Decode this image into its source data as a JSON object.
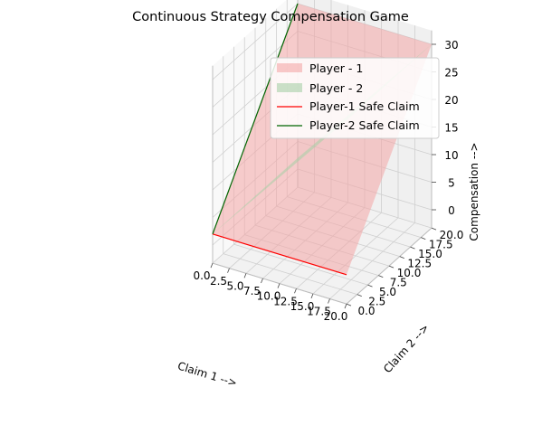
{
  "chart_data": {
    "type": "3d-surface",
    "title": "Continuous Strategy Compensation Game",
    "xlabel": "Claim 1 -->",
    "ylabel": "Claim 2 -->",
    "zlabel": "Compensation -->",
    "xlim": [
      0,
      20
    ],
    "ylim": [
      0,
      20
    ],
    "zlim": [
      0,
      30
    ],
    "xticks": [
      "0.0",
      "2.5",
      "5.0",
      "7.5",
      "10.0",
      "12.5",
      "15.0",
      "17.5",
      "20.0"
    ],
    "yticks": [
      "0.0",
      "2.5",
      "5.0",
      "7.5",
      "10.0",
      "12.5",
      "15.0",
      "17.5",
      "20.0"
    ],
    "zticks": [
      "0",
      "5",
      "10",
      "15",
      "20",
      "25",
      "30"
    ],
    "grid": true,
    "legend_position": "top-right",
    "series": [
      {
        "name": "Player - 1",
        "kind": "surface",
        "color": "#f4a6a6",
        "corners": [
          {
            "x": 0,
            "y": 0,
            "z": 2
          },
          {
            "x": 20,
            "y": 0,
            "z": 2
          },
          {
            "x": 20,
            "y": 20,
            "z": 30
          },
          {
            "x": 0,
            "y": 20,
            "z": 30
          }
        ]
      },
      {
        "name": "Player - 2",
        "kind": "surface",
        "color": "#a6cfa6",
        "corners": [
          {
            "x": 0,
            "y": 0,
            "z": 2
          },
          {
            "x": 20,
            "y": 0,
            "z": 30
          },
          {
            "x": 20,
            "y": 20,
            "z": 30
          },
          {
            "x": 0,
            "y": 20,
            "z": 2
          }
        ]
      },
      {
        "name": "Player-1 Safe Claim",
        "kind": "line",
        "color": "#ff0000",
        "points": [
          {
            "x": 0,
            "y": 0,
            "z": 2
          },
          {
            "x": 20,
            "y": 0,
            "z": 2
          }
        ]
      },
      {
        "name": "Player-2 Safe Claim",
        "kind": "line",
        "color": "#006400",
        "points": [
          {
            "x": 0,
            "y": 0,
            "z": 2
          },
          {
            "x": 0,
            "y": 20,
            "z": 30
          }
        ]
      }
    ]
  }
}
